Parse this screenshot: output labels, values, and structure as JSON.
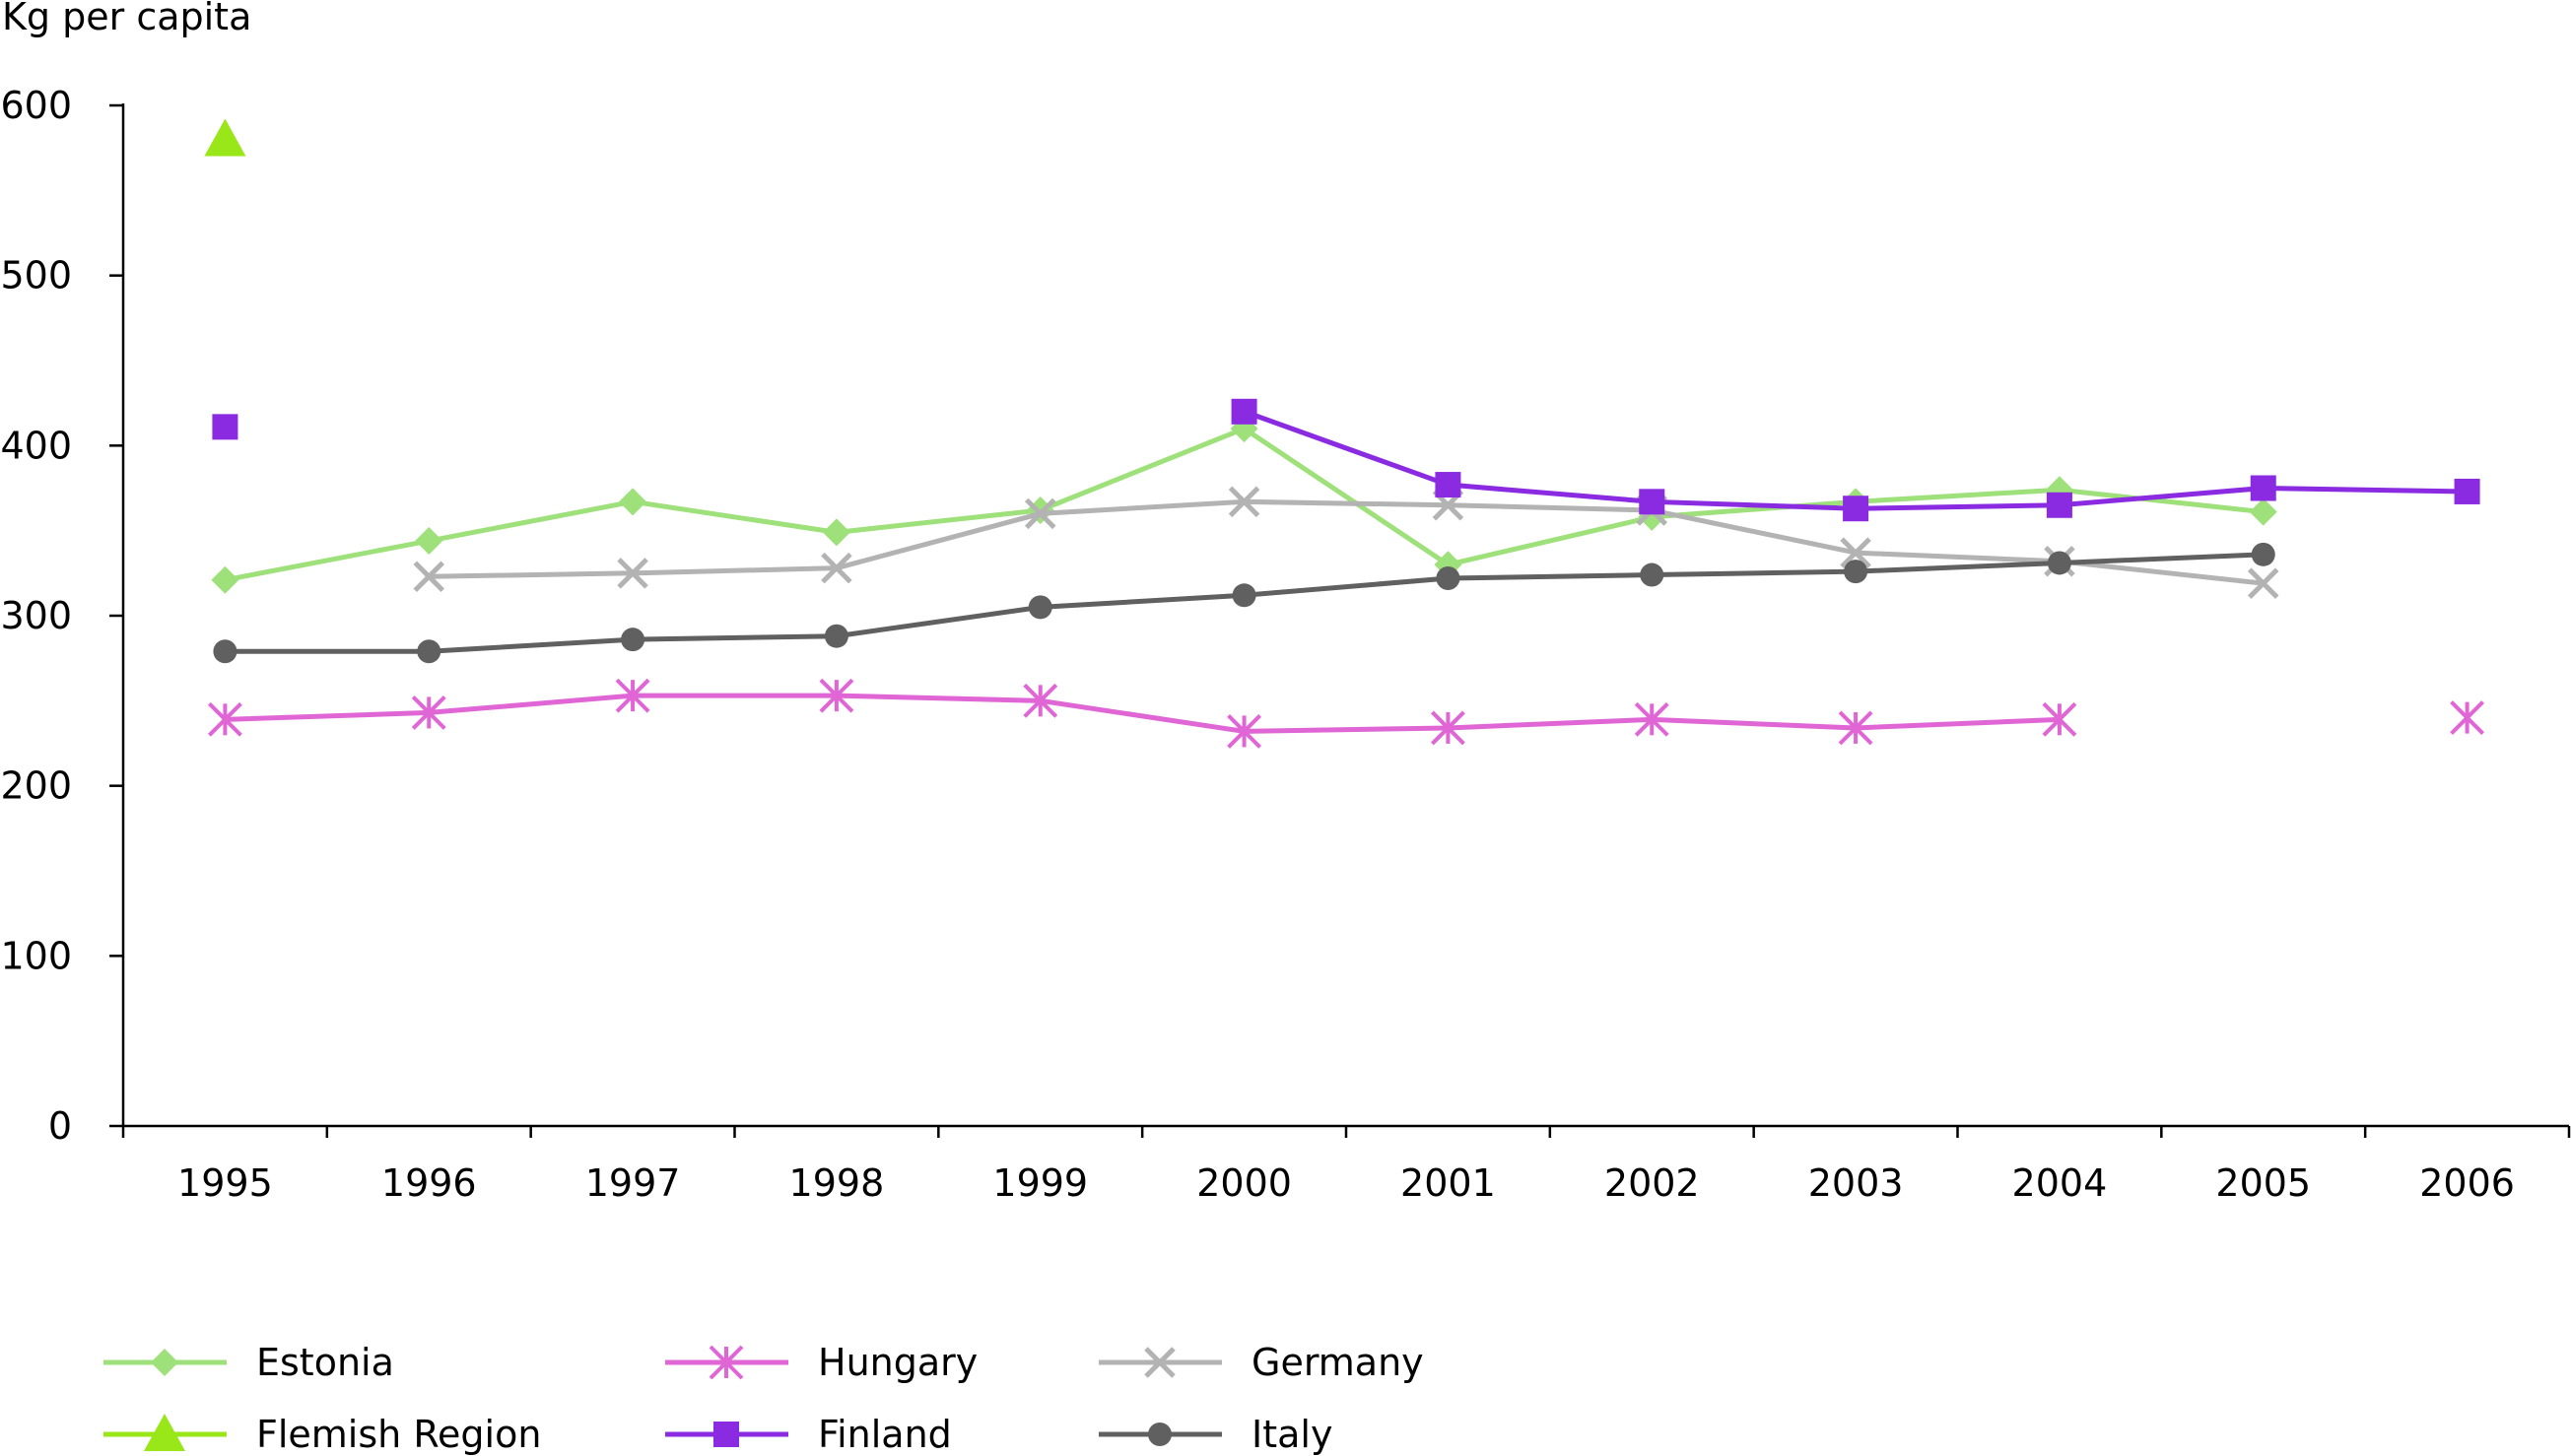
{
  "chart_data": {
    "type": "line",
    "title": "",
    "xlabel": "",
    "ylabel": "Kg per capita",
    "categories": [
      "1995",
      "1996",
      "1997",
      "1998",
      "1999",
      "2000",
      "2001",
      "2002",
      "2003",
      "2004",
      "2005",
      "2006"
    ],
    "ylim": [
      0,
      600
    ],
    "yticks": [
      0,
      100,
      200,
      300,
      400,
      500,
      600
    ],
    "grid": false,
    "legend_position": "bottom",
    "series": [
      {
        "name": "Estonia",
        "color": "#9ee07a",
        "marker": "diamond",
        "values": [
          321,
          344,
          367,
          349,
          362,
          410,
          330,
          358,
          367,
          374,
          361,
          null
        ]
      },
      {
        "name": "Hungary",
        "color": "#e066d6",
        "marker": "asterisk",
        "values": [
          239,
          243,
          253,
          253,
          250,
          232,
          234,
          239,
          234,
          239,
          null,
          240
        ]
      },
      {
        "name": "Germany",
        "color": "#b3b3b3",
        "marker": "x",
        "values": [
          null,
          323,
          325,
          328,
          360,
          367,
          365,
          362,
          337,
          332,
          319,
          null
        ]
      },
      {
        "name": "Flemish Region",
        "color": "#99e619",
        "marker": "triangle",
        "values": [
          580,
          null,
          null,
          null,
          null,
          null,
          null,
          null,
          null,
          null,
          null,
          null
        ]
      },
      {
        "name": "Finland",
        "color": "#8a2be2",
        "marker": "square",
        "values": [
          411,
          null,
          null,
          null,
          null,
          420,
          377,
          367,
          363,
          365,
          375,
          373
        ]
      },
      {
        "name": "Italy",
        "color": "#606060",
        "marker": "circle",
        "values": [
          279,
          279,
          286,
          288,
          305,
          312,
          322,
          324,
          326,
          331,
          336,
          null
        ]
      }
    ]
  }
}
